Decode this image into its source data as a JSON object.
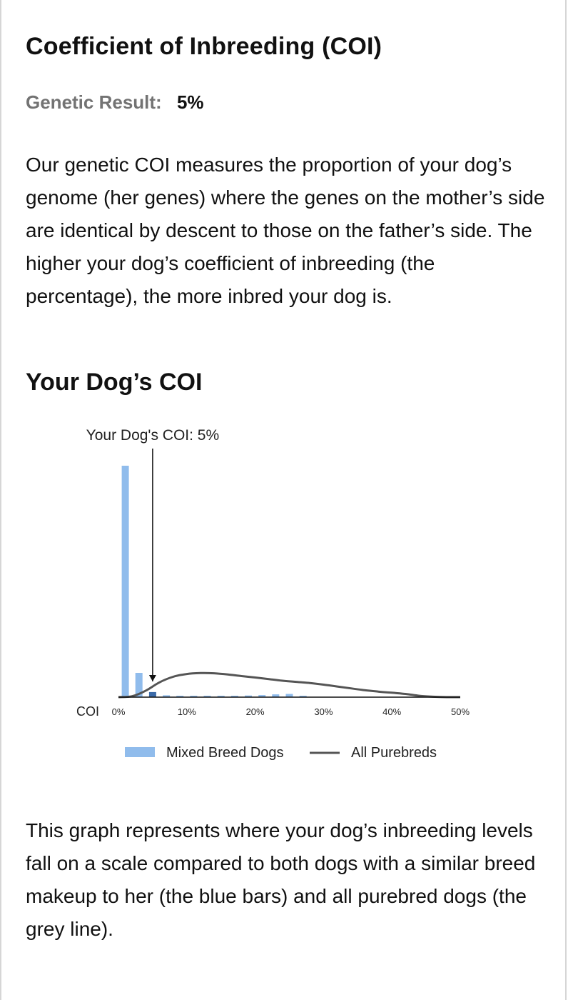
{
  "header": {
    "title": "Coefficient of Inbreeding (COI)"
  },
  "result": {
    "label": "Genetic Result:",
    "value": "5%"
  },
  "intro": "Our genetic COI measures the proportion of your dog’s genome (her genes) where the genes on the mother’s side are identical by descent to those on the father’s side. The higher your dog’s coefficient of inbreeding (the percentage), the more inbred your dog is.",
  "section": {
    "title": "Your Dog’s COI"
  },
  "chart_data": {
    "type": "bar",
    "marker": {
      "label": "Your Dog's COI: 5%",
      "x": 5
    },
    "xaxis": {
      "label": "COI",
      "range": [
        0,
        50
      ],
      "ticks": [
        {
          "value": 0,
          "label": "0%"
        },
        {
          "value": 10,
          "label": "10%"
        },
        {
          "value": 20,
          "label": "20%"
        },
        {
          "value": 30,
          "label": "30%"
        },
        {
          "value": 40,
          "label": "40%"
        },
        {
          "value": 50,
          "label": "50%"
        }
      ]
    },
    "ylim": [
      0,
      1
    ],
    "series": [
      {
        "name": "Mixed Breed Dogs",
        "type": "bar",
        "color": "#90bcec",
        "highlight_color": "#3b6aa8",
        "highlight_x": 5,
        "x": [
          1,
          3,
          5,
          7,
          9,
          11,
          13,
          15,
          17,
          19,
          21,
          23,
          25,
          27
        ],
        "values": [
          1.0,
          0.105,
          0.022,
          0.008,
          0.006,
          0.006,
          0.005,
          0.005,
          0.006,
          0.007,
          0.009,
          0.012,
          0.014,
          0.003
        ]
      },
      {
        "name": "All Purebreds",
        "type": "line",
        "color": "#555555",
        "x": [
          0,
          2,
          4,
          6,
          8,
          10,
          12,
          14,
          16,
          18,
          20,
          22,
          24,
          26,
          28,
          30,
          32,
          34,
          36,
          38,
          40,
          42,
          44,
          46,
          48,
          50
        ],
        "values": [
          0.0,
          0.004,
          0.028,
          0.064,
          0.088,
          0.1,
          0.104,
          0.103,
          0.098,
          0.091,
          0.085,
          0.078,
          0.071,
          0.066,
          0.061,
          0.054,
          0.046,
          0.038,
          0.03,
          0.024,
          0.019,
          0.014,
          0.006,
          0.002,
          0.0,
          0.0
        ]
      }
    ],
    "legend": {
      "position": "bottom"
    }
  },
  "footer": "This graph represents where your dog’s inbreeding levels fall on a scale compared to both dogs with a similar breed makeup to her (the blue bars) and all purebred dogs (the grey line)."
}
